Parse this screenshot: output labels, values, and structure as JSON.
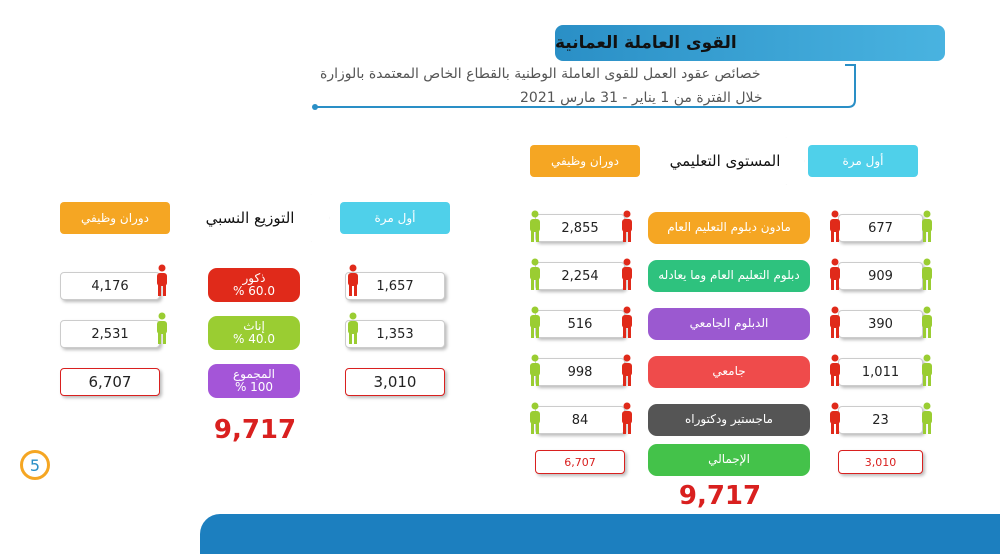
{
  "header": {
    "title": "القوى العاملة العمانية",
    "subtitle_line1": "خصائص عقود العمل للقوى العاملة الوطنية بالقطاع الخاص المعتمدة بالوزارة",
    "subtitle_line2": "خلال الفترة من 1 يناير - 31 مارس 2021"
  },
  "page_number": "5",
  "left_panel": {
    "headers": {
      "turnover": "دوران وظيفي",
      "title": "التوزيع النسبي",
      "first_time": "أول مرة"
    },
    "rows": [
      {
        "label": "ذكور",
        "share": "60.0 %",
        "turnover": "4,176",
        "first_time": "1,657"
      },
      {
        "label": "إناث",
        "share": "40.0 %",
        "turnover": "2,531",
        "first_time": "1,353"
      },
      {
        "label": "المجموع",
        "share": "100 %",
        "turnover": "6,707",
        "first_time": "3,010"
      }
    ],
    "total": "9,717"
  },
  "right_panel": {
    "headers": {
      "turnover": "دوران وظيفي",
      "title": "المستوى التعليمي",
      "first_time": "أول مرة"
    },
    "rows": [
      {
        "label": "مادون دبلوم التعليم العام",
        "turnover": "2,855",
        "first_time": "677"
      },
      {
        "label": "دبلوم التعليم العام وما يعادله",
        "turnover": "2,254",
        "first_time": "909"
      },
      {
        "label": "الدبلوم الجامعي",
        "turnover": "516",
        "first_time": "390"
      },
      {
        "label": "جامعي",
        "turnover": "998",
        "first_time": "1,011"
      },
      {
        "label": "ماجستير ودكتوراه",
        "turnover": "84",
        "first_time": "23"
      }
    ],
    "total_row": {
      "label": "الإجمالي",
      "turnover": "6,707",
      "first_time": "3,010"
    },
    "total": "9,717"
  }
}
